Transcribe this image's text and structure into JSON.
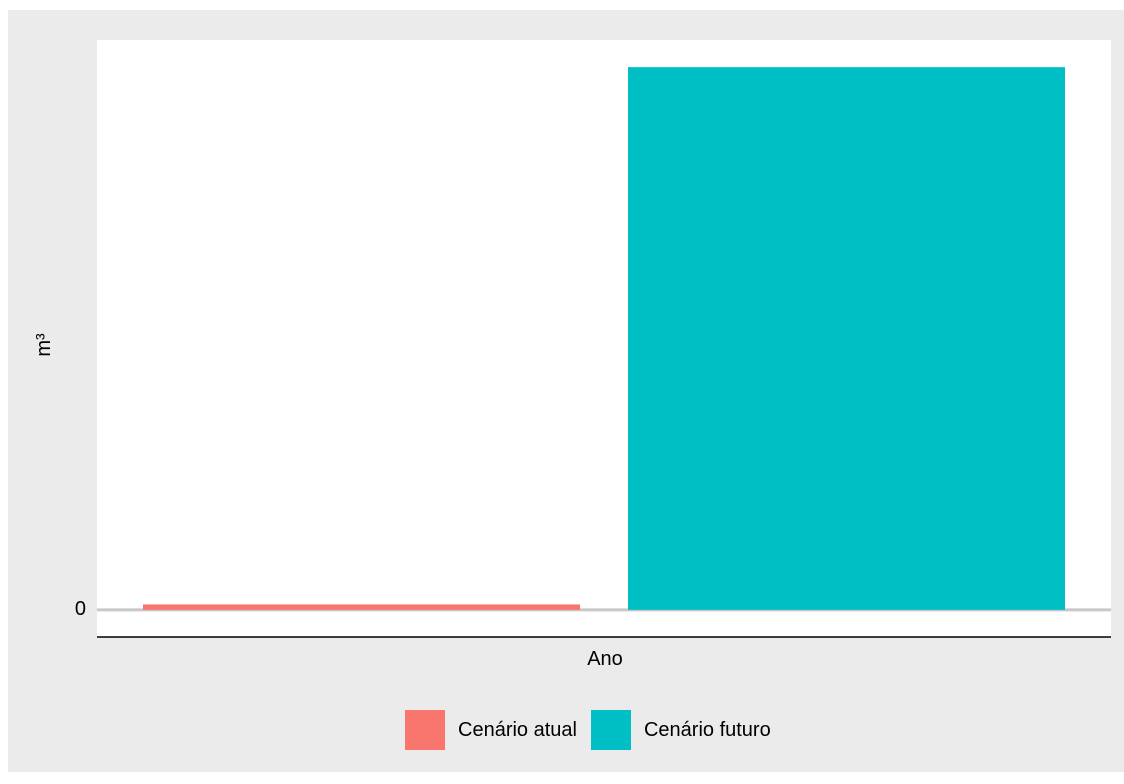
{
  "chart_data": {
    "type": "bar",
    "title": "",
    "xlabel": "Ano",
    "ylabel": "m³",
    "y_tick_labels": [
      "0"
    ],
    "categories": [
      "Ano"
    ],
    "series": [
      {
        "name": "Cenário atual",
        "values": [
          1
        ],
        "color": "#f8766d"
      },
      {
        "name": "Cenário futuro",
        "values": [
          100
        ],
        "color": "#00bfc4"
      }
    ],
    "ylim": [
      -5,
      105
    ],
    "grid": true,
    "legend_position": "bottom"
  }
}
